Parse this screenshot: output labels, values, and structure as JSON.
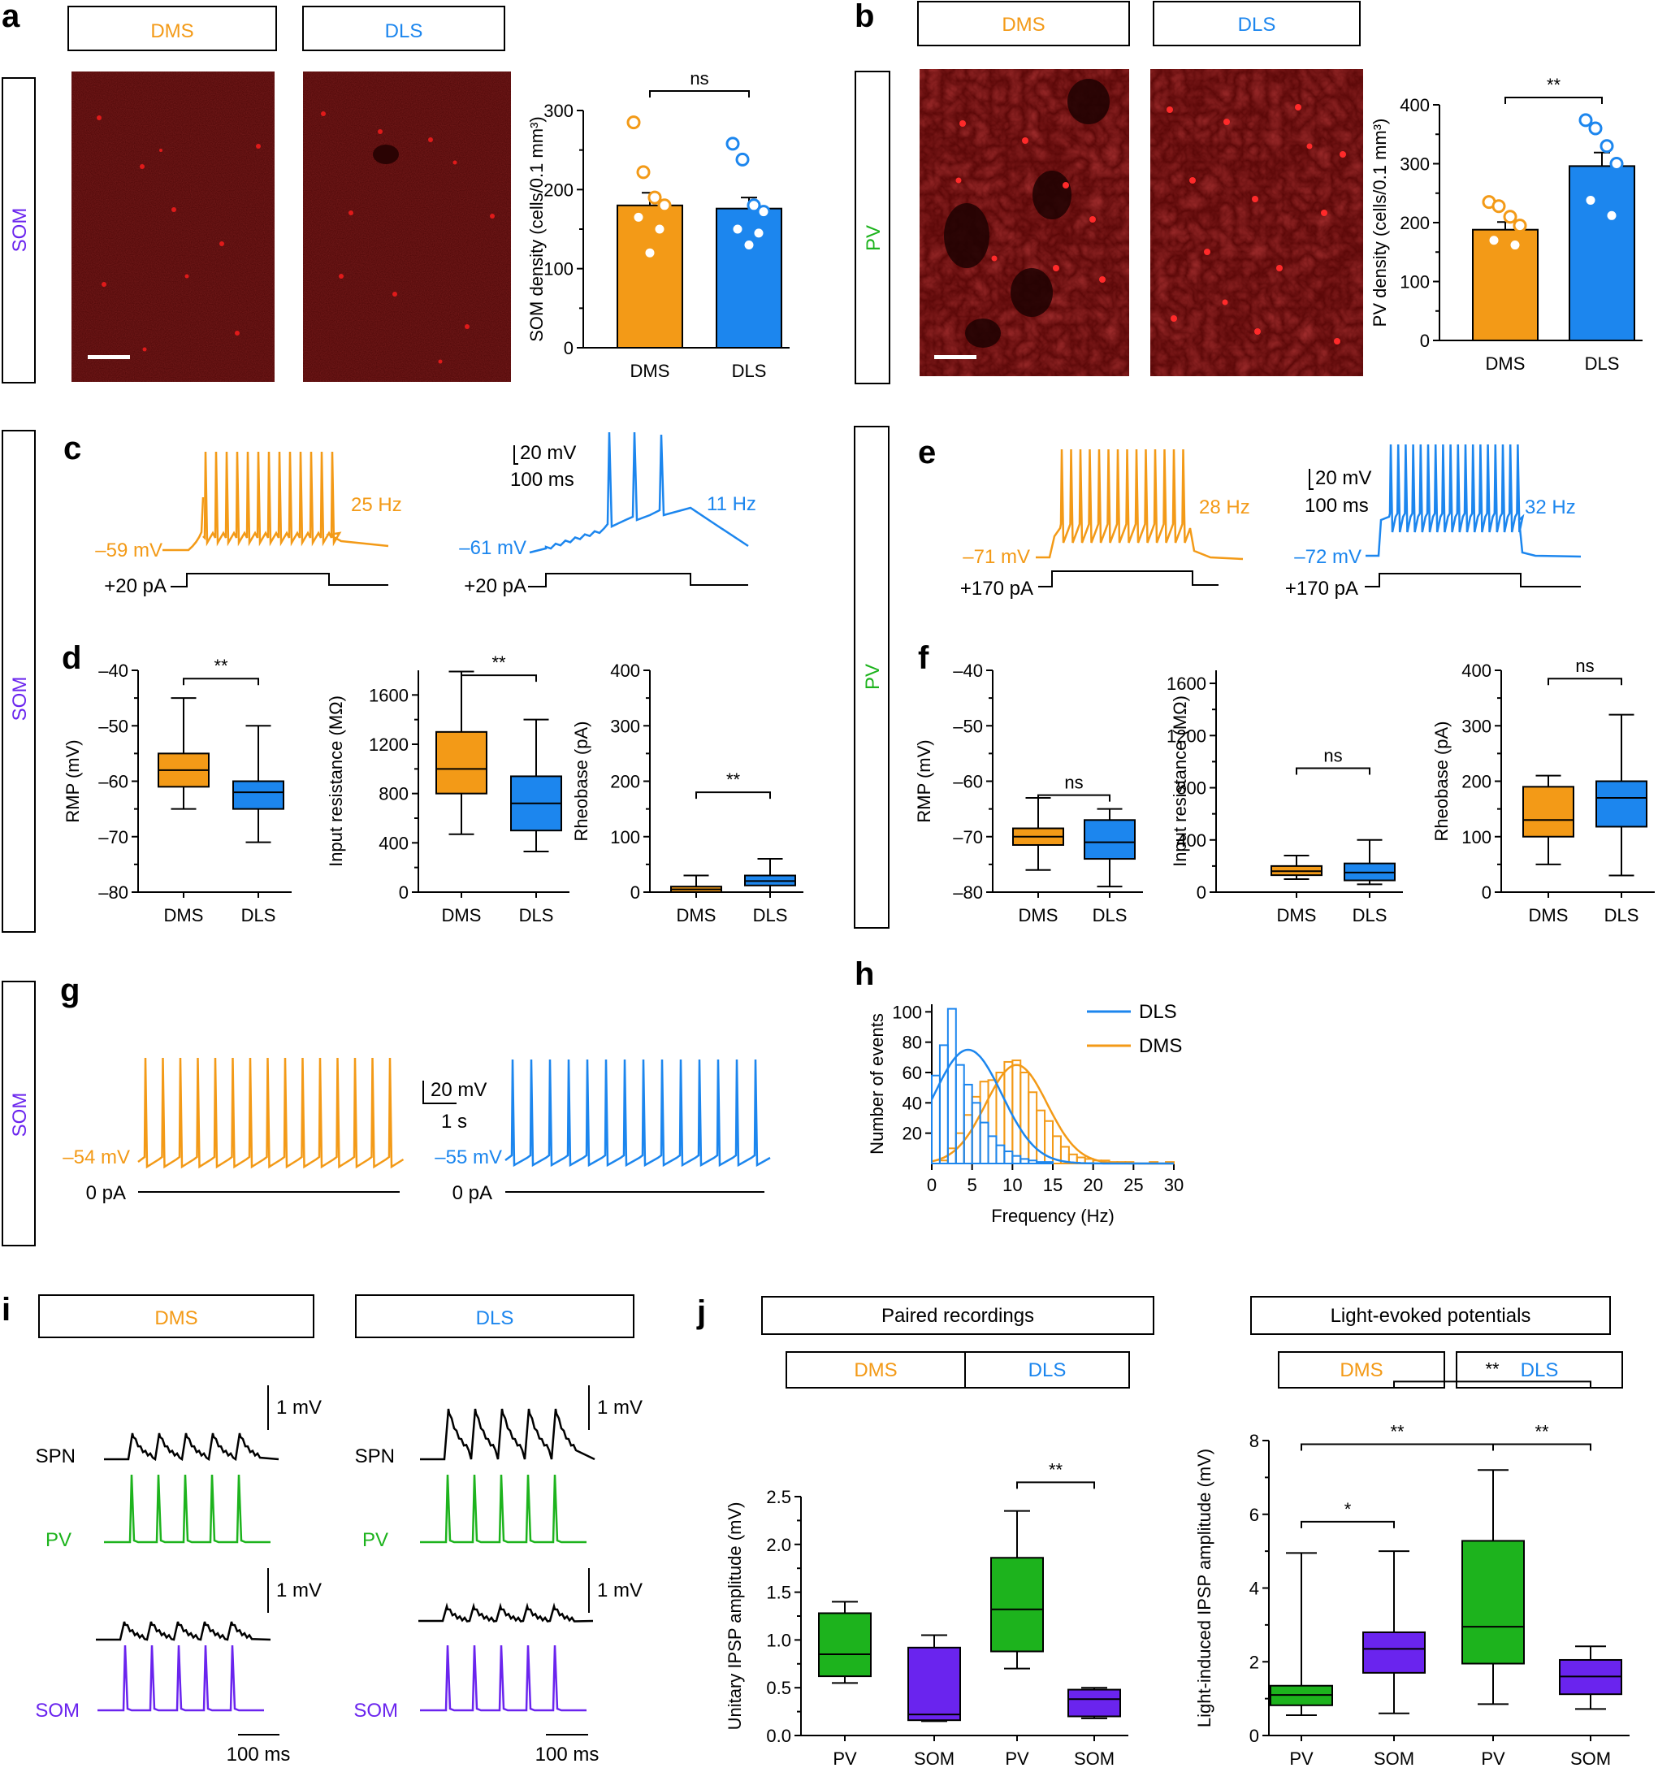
{
  "colors": {
    "dms": "#f39a17",
    "dls": "#1c86ee",
    "pv": "#1db31d",
    "som": "#6a24ee",
    "black": "#000000",
    "micro": "#8a0d0d"
  },
  "panels": {
    "a": {
      "label": "a",
      "head_dms": "DMS",
      "head_dls": "DLS",
      "side": "SOM"
    },
    "b": {
      "label": "b",
      "head_dms": "DMS",
      "head_dls": "DLS",
      "side": "PV"
    },
    "c": {
      "label": "c",
      "v_dms": "–59 mV",
      "hz_dms": "25 Hz",
      "i_dms": "+20 pA",
      "v_dls": "–61 mV",
      "hz_dls": "11 Hz",
      "i_dls": "+20 pA",
      "scale_mv": "20 mV",
      "scale_ms": "100 ms"
    },
    "d": {
      "label": "d",
      "side": "SOM"
    },
    "e": {
      "label": "e",
      "side": "PV",
      "v_dms": "–71 mV",
      "hz_dms": "28 Hz",
      "i_dms": "+170 pA",
      "v_dls": "–72 mV",
      "hz_dls": "32 Hz",
      "i_dls": "+170 pA",
      "scale_mv": "20 mV",
      "scale_ms": "100 ms"
    },
    "f": {
      "label": "f"
    },
    "g": {
      "label": "g",
      "side": "SOM",
      "v_dms": "–54 mV",
      "v_dls": "–55 mV",
      "i_dms": "0 pA",
      "i_dls": "0 pA",
      "scale_mv": "20 mV",
      "scale_s": "1 s"
    },
    "h": {
      "label": "h"
    },
    "i": {
      "label": "i",
      "head_dms": "DMS",
      "head_dls": "DLS",
      "row_spn": "SPN",
      "row_pv": "PV",
      "row_som": "SOM",
      "scale_mv": "1 mV",
      "scale_ms": "100 ms"
    },
    "j": {
      "label": "j",
      "head_paired": "Paired recordings",
      "head_light": "Light-evoked potentials",
      "head_dms": "DMS",
      "head_dls": "DLS"
    }
  },
  "chart_data": [
    {
      "id": "a",
      "type": "bar",
      "categories": [
        "DMS",
        "DLS"
      ],
      "values": [
        180,
        176
      ],
      "errors": [
        16,
        14
      ],
      "points": [
        [
          285,
          222,
          190,
          180,
          165,
          150,
          120
        ],
        [
          258,
          238,
          180,
          172,
          150,
          145,
          130
        ]
      ],
      "ylabel": "SOM density (cells/0.1 mm³)",
      "ylim": [
        0,
        300
      ],
      "yticks": [
        "0",
        "100",
        "200",
        "300"
      ],
      "sig": "ns"
    },
    {
      "id": "b",
      "type": "bar",
      "categories": [
        "DMS",
        "DLS"
      ],
      "values": [
        188,
        296
      ],
      "errors": [
        13,
        23
      ],
      "points": [
        [
          235,
          228,
          210,
          195,
          170,
          162
        ],
        [
          374,
          360,
          330,
          300,
          238,
          212
        ]
      ],
      "ylabel": "PV density (cells/0.1 mm³)",
      "ylim": [
        0,
        400
      ],
      "yticks": [
        "0",
        "100",
        "200",
        "300",
        "400"
      ],
      "sig": "**"
    },
    {
      "id": "d1",
      "type": "box",
      "categories": [
        "DMS",
        "DLS"
      ],
      "ylabel": "RMP (mV)",
      "ylim": [
        -80,
        -40
      ],
      "yticks": [
        "–80",
        "–70",
        "–60",
        "–50",
        "–40"
      ],
      "boxes": [
        {
          "min": -65,
          "q1": -61,
          "med": -58,
          "q3": -55,
          "max": -45
        },
        {
          "min": -71,
          "q1": -65,
          "med": -62,
          "q3": -60,
          "max": -50
        }
      ],
      "sig": "**",
      "sig_y": -41.5
    },
    {
      "id": "d2",
      "type": "box",
      "categories": [
        "DMS",
        "DLS"
      ],
      "ylabel": "Input resistance (MΩ)",
      "ylim": [
        0,
        1800
      ],
      "yticks": [
        "0",
        "400",
        "800",
        "1200",
        "1600"
      ],
      "boxes": [
        {
          "min": 470,
          "q1": 800,
          "med": 1000,
          "q3": 1300,
          "max": 1790
        },
        {
          "min": 330,
          "q1": 500,
          "med": 720,
          "q3": 940,
          "max": 1400
        }
      ],
      "sig": "**",
      "sig_y": 1760
    },
    {
      "id": "d3",
      "type": "box",
      "categories": [
        "DMS",
        "DLS"
      ],
      "ylabel": "Rheobase (pA)",
      "ylim": [
        0,
        400
      ],
      "yticks": [
        "0",
        "100",
        "200",
        "300",
        "400"
      ],
      "boxes": [
        {
          "min": 0,
          "q1": 0,
          "med": 5,
          "q3": 10,
          "max": 30
        },
        {
          "min": 0,
          "q1": 12,
          "med": 20,
          "q3": 30,
          "max": 60
        }
      ],
      "sig": "**",
      "sig_y": 180
    },
    {
      "id": "f1",
      "type": "box",
      "categories": [
        "DMS",
        "DLS"
      ],
      "ylabel": "RMP (mV)",
      "ylim": [
        -80,
        -40
      ],
      "yticks": [
        "–80",
        "–70",
        "–60",
        "–50",
        "–40"
      ],
      "boxes": [
        {
          "min": -76,
          "q1": -71.5,
          "med": -70,
          "q3": -68.5,
          "max": -63
        },
        {
          "min": -79,
          "q1": -74,
          "med": -71,
          "q3": -67,
          "max": -65
        }
      ],
      "sig": "ns",
      "sig_y": -62.5
    },
    {
      "id": "f2",
      "type": "box",
      "categories": [
        "DMS",
        "DLS"
      ],
      "ylabel": "Input resistance (MΩ)",
      "ylim": [
        0,
        1700
      ],
      "yticks": [
        "0",
        "400",
        "800",
        "1200",
        "1600"
      ],
      "boxes": [
        {
          "min": 100,
          "q1": 130,
          "med": 160,
          "q3": 200,
          "max": 280
        },
        {
          "min": 60,
          "q1": 90,
          "med": 150,
          "q3": 220,
          "max": 400
        }
      ],
      "sig": "ns",
      "sig_y": 950
    },
    {
      "id": "f3",
      "type": "box",
      "categories": [
        "DMS",
        "DLS"
      ],
      "ylabel": "Rheobase (pA)",
      "ylim": [
        0,
        400
      ],
      "yticks": [
        "0",
        "100",
        "200",
        "300",
        "400"
      ],
      "boxes": [
        {
          "min": 50,
          "q1": 100,
          "med": 130,
          "q3": 190,
          "max": 210
        },
        {
          "min": 30,
          "q1": 118,
          "med": 170,
          "q3": 200,
          "max": 320
        }
      ],
      "sig": "ns",
      "sig_y": 385
    },
    {
      "id": "h",
      "type": "histogram",
      "xlabel": "Frequency (Hz)",
      "ylabel": "Number of events",
      "xlim": [
        0,
        30
      ],
      "ylim": [
        0,
        105
      ],
      "xticks": [
        "0",
        "5",
        "10",
        "15",
        "20",
        "25",
        "30"
      ],
      "yticks": [
        "20",
        "40",
        "60",
        "80",
        "100"
      ],
      "series": [
        {
          "name": "DLS",
          "bin_width": 1,
          "values": [
            58,
            78,
            102,
            65,
            52,
            40,
            27,
            18,
            12,
            8,
            5,
            3,
            2,
            1,
            1,
            0,
            0,
            0,
            0,
            0,
            0,
            0,
            0,
            0,
            0,
            0,
            0,
            0,
            0,
            0
          ],
          "fit": {
            "mu": 4.5,
            "sigma": 4.2,
            "amp": 75
          }
        },
        {
          "name": "DMS",
          "bin_width": 1,
          "values": [
            0,
            2,
            10,
            20,
            32,
            44,
            54,
            55,
            60,
            67,
            68,
            60,
            47,
            35,
            28,
            18,
            11,
            6,
            4,
            3,
            2,
            2,
            1,
            1,
            1,
            0,
            0,
            1,
            0,
            1
          ],
          "fit": {
            "mu": 10.5,
            "sigma": 3.8,
            "amp": 65
          }
        }
      ]
    },
    {
      "id": "j1",
      "type": "box",
      "categories": [
        "PV",
        "SOM",
        "PV",
        "SOM"
      ],
      "ylabel": "Unitary IPSP amplitude (mV)",
      "ylim": [
        0,
        2.5
      ],
      "yticks": [
        "0.0",
        "0.5",
        "1.0",
        "1.5",
        "2.0",
        "2.5"
      ],
      "boxes": [
        {
          "min": 0.55,
          "q1": 0.62,
          "med": 0.85,
          "q3": 1.28,
          "max": 1.4
        },
        {
          "min": 0.15,
          "q1": 0.16,
          "med": 0.22,
          "q3": 0.92,
          "max": 1.05
        },
        {
          "min": 0.7,
          "q1": 0.88,
          "med": 1.32,
          "q3": 1.86,
          "max": 2.35
        },
        {
          "min": 0.18,
          "q1": 0.2,
          "med": 0.38,
          "q3": 0.48,
          "max": 0.5
        }
      ],
      "sig": [
        {
          "from": 2,
          "to": 3,
          "label": "**",
          "y": 2.65
        }
      ]
    },
    {
      "id": "j2",
      "type": "box",
      "categories": [
        "PV",
        "SOM",
        "PV",
        "SOM"
      ],
      "ylabel": "Light-induced IPSP amplitude (mV)",
      "ylim": [
        0,
        8
      ],
      "yticks": [
        "0",
        "2",
        "4",
        "6",
        "8"
      ],
      "boxes": [
        {
          "min": 0.55,
          "q1": 0.82,
          "med": 1.1,
          "q3": 1.35,
          "max": 4.95
        },
        {
          "min": 0.6,
          "q1": 1.7,
          "med": 2.35,
          "q3": 2.8,
          "max": 5
        },
        {
          "min": 0.85,
          "q1": 1.95,
          "med": 2.95,
          "q3": 5.28,
          "max": 7.2
        },
        {
          "min": 0.72,
          "q1": 1.12,
          "med": 1.6,
          "q3": 2.05,
          "max": 2.42
        }
      ],
      "sig": [
        {
          "from": 0,
          "to": 1,
          "label": "*",
          "y": 5.8
        },
        {
          "from": 0,
          "to": 2,
          "label": "**",
          "y": 7.9
        },
        {
          "from": 2,
          "to": 3,
          "label": "**",
          "y": 7.9
        },
        {
          "from": 1,
          "to": 3,
          "label": "**",
          "y": 9.6
        }
      ]
    }
  ]
}
